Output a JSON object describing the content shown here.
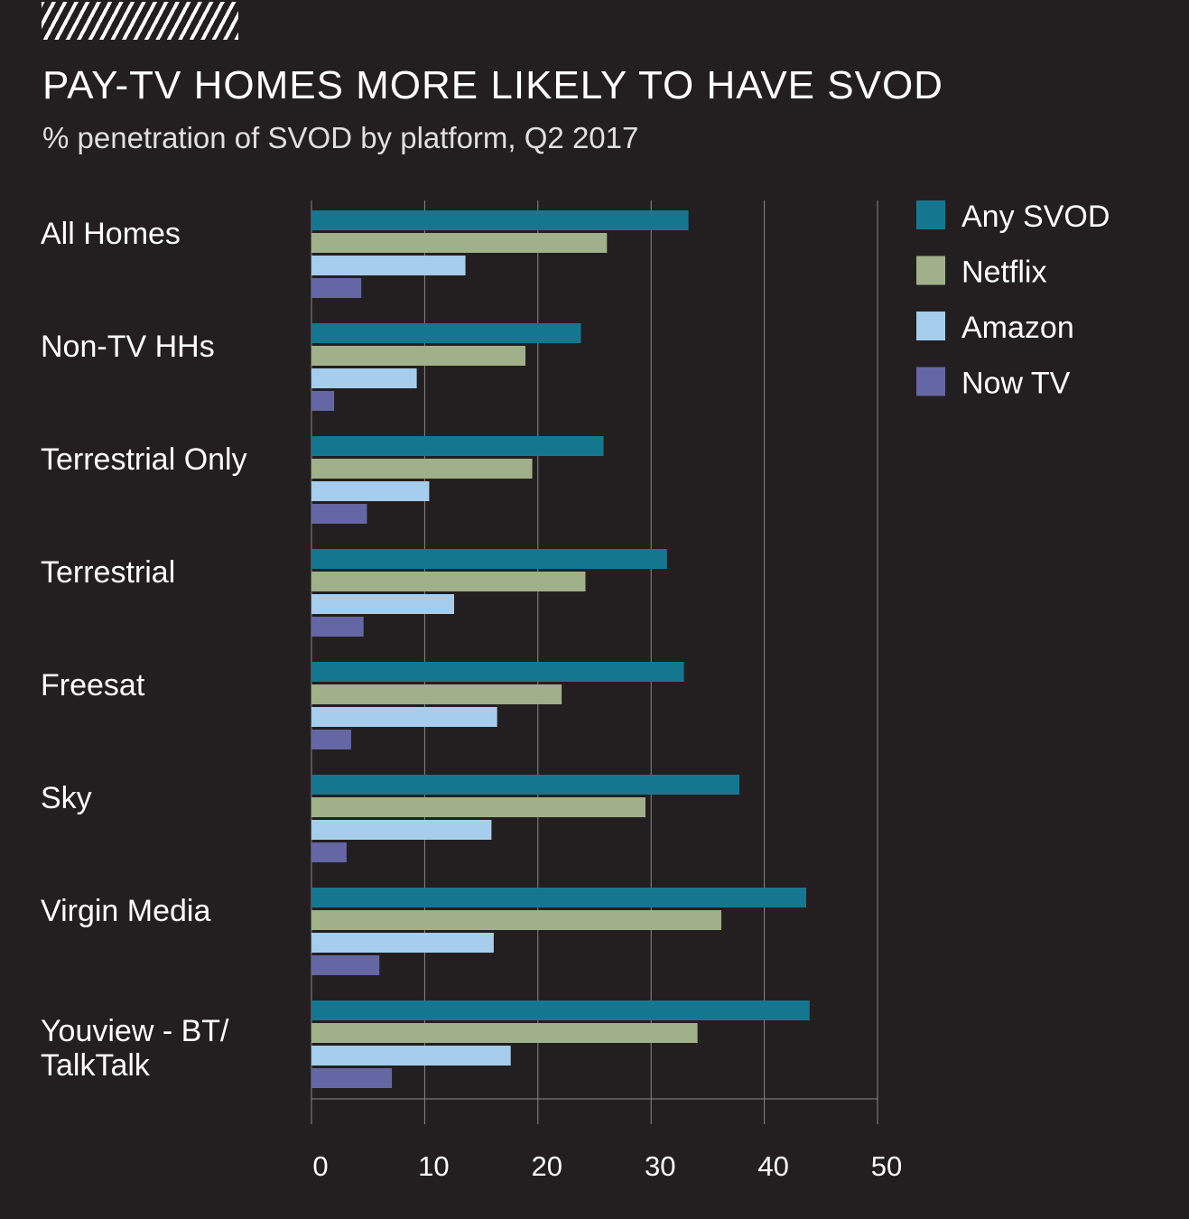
{
  "header": {
    "title": "PAY-TV HOMES MORE LIKELY TO HAVE SVOD",
    "subtitle": "% penetration of SVOD by platform, Q2 2017"
  },
  "chart_data": {
    "type": "bar",
    "orientation": "horizontal",
    "title": "PAY-TV HOMES MORE LIKELY TO HAVE SVOD",
    "subtitle": "% penetration of SVOD by platform, Q2 2017",
    "xlabel": "",
    "ylabel": "",
    "xlim": [
      0,
      50
    ],
    "xticks": [
      0,
      10,
      20,
      30,
      40,
      50
    ],
    "grid": true,
    "legend_position": "top-right",
    "categories": [
      "All Homes",
      "Non-TV HHs",
      "Terrestrial Only",
      "Terrestrial",
      "Freesat",
      "Sky",
      "Virgin Media",
      "Youview - BT/ TalkTalk"
    ],
    "series": [
      {
        "name": "Any SVOD",
        "color": "#15778f",
        "values": [
          33.3,
          23.8,
          25.8,
          31.4,
          32.9,
          37.8,
          43.7,
          44.0
        ]
      },
      {
        "name": "Netflix",
        "color": "#a0b08a",
        "values": [
          26.1,
          18.9,
          19.5,
          24.2,
          22.1,
          29.5,
          36.2,
          34.1
        ]
      },
      {
        "name": "Amazon",
        "color": "#a6cdec",
        "values": [
          13.6,
          9.3,
          10.4,
          12.6,
          16.4,
          15.9,
          16.1,
          17.6
        ]
      },
      {
        "name": "Now TV",
        "color": "#6467a3",
        "values": [
          4.4,
          2.0,
          4.9,
          4.6,
          3.5,
          3.1,
          6.0,
          7.1
        ]
      }
    ]
  }
}
